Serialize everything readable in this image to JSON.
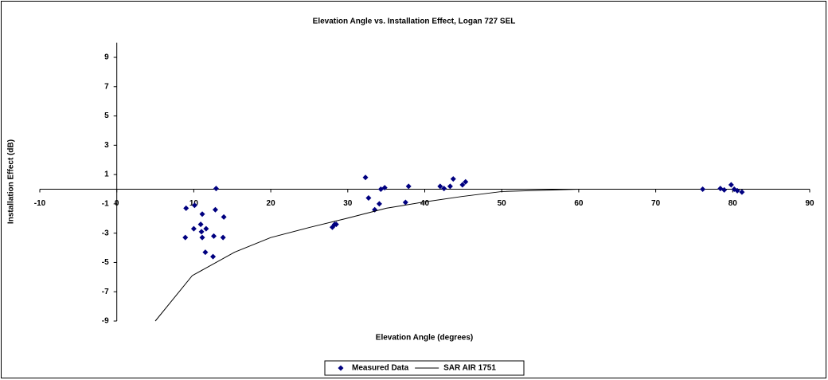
{
  "chart_data": {
    "type": "scatter",
    "title": "Elevation Angle vs. Installation Effect, Logan 727 SEL",
    "x_label": "Elevation Angle (degrees)",
    "y_label": "Installation Effect (dB)",
    "xlim": [
      -10,
      90
    ],
    "xticks": [
      -10,
      0,
      10,
      20,
      30,
      40,
      50,
      60,
      70,
      80,
      90
    ],
    "ylim": [
      -9,
      10
    ],
    "yticks": [
      -9,
      -7,
      -5,
      -3,
      -1,
      1,
      3,
      5,
      7,
      9
    ],
    "grid": false,
    "legend": "bottom",
    "series": [
      {
        "name": "Measured Data",
        "color": "#000080",
        "mode": "markers",
        "x": [
          9.0,
          10.1,
          8.9,
          10.0,
          11.1,
          10.9,
          11.0,
          11.1,
          11.6,
          11.5,
          12.5,
          12.6,
          12.8,
          12.9,
          13.8,
          13.9,
          28.0,
          28.3,
          28.5,
          32.3,
          32.7,
          33.5,
          34.1,
          34.3,
          34.8,
          37.5,
          37.9,
          42.0,
          42.5,
          43.3,
          43.7,
          44.9,
          45.3,
          76.1,
          78.4,
          78.9,
          79.8,
          80.2,
          80.6,
          81.2
        ],
        "values": [
          -1.3,
          -1.1,
          -3.3,
          -2.7,
          -1.7,
          -2.4,
          -2.9,
          -3.3,
          -2.7,
          -4.3,
          -4.6,
          -3.2,
          -1.4,
          0.05,
          -3.3,
          -1.9,
          -2.6,
          -2.4,
          -2.4,
          0.8,
          -0.6,
          -1.4,
          -1.0,
          0.0,
          0.1,
          -0.9,
          0.2,
          0.2,
          0.05,
          0.2,
          0.7,
          0.3,
          0.5,
          0.0,
          0.05,
          -0.05,
          0.3,
          0.0,
          -0.1,
          -0.2
        ]
      },
      {
        "name": "SAR AIR 1751",
        "color": "#000000",
        "mode": "line",
        "x": [
          5.0,
          9.8,
          15.3,
          20.0,
          25.1,
          29.8,
          35.0,
          39.6,
          44.8,
          50.0,
          60.0
        ],
        "values": [
          -9.0,
          -5.9,
          -4.3,
          -3.3,
          -2.6,
          -2.0,
          -1.3,
          -0.9,
          -0.5,
          -0.16,
          0.0
        ]
      }
    ]
  }
}
